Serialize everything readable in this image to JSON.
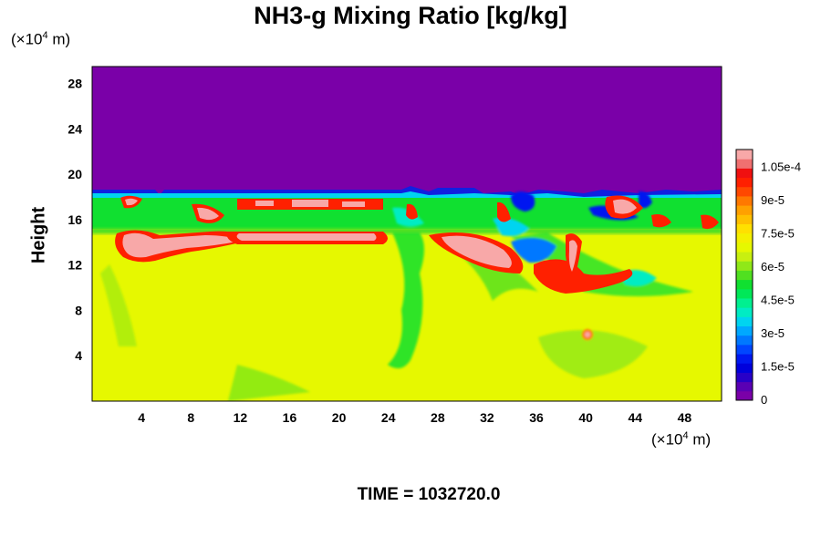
{
  "chart_data": {
    "type": "heatmap",
    "title": "NH3-g Mixing Ratio [kg/kg]",
    "ylabel": "Height",
    "y_unit_prefix": "(×10",
    "y_unit_exp": "4",
    "y_unit_suffix": " m)",
    "x_unit_prefix": "(×10",
    "x_unit_exp": "4",
    "x_unit_suffix": " m)",
    "time_label": "TIME = 1032720.0",
    "xlim": [
      0,
      51
    ],
    "ylim": [
      0,
      29.5
    ],
    "x_ticks": [
      4,
      8,
      12,
      16,
      20,
      24,
      28,
      32,
      36,
      40,
      44,
      48
    ],
    "y_ticks": [
      4,
      8,
      12,
      16,
      20,
      24,
      28
    ],
    "colorbar": {
      "range": [
        0,
        0.000113
      ],
      "tick_values": [
        0,
        1.5e-05,
        3e-05,
        4.5e-05,
        6e-05,
        7.5e-05,
        9e-05,
        0.000105
      ],
      "tick_labels": [
        "0",
        "1.5e-5",
        "3e-5",
        "4.5e-5",
        "6e-5",
        "7.5e-5",
        "9e-5",
        "1.05e-4"
      ],
      "colors": [
        "#7a00a8",
        "#5a00b4",
        "#2800c8",
        "#0000dc",
        "#0018f0",
        "#0046ff",
        "#0078ff",
        "#00a8ff",
        "#00d4f0",
        "#00ecc4",
        "#00f090",
        "#00e858",
        "#10e030",
        "#50e020",
        "#90e818",
        "#c8f010",
        "#e6f800",
        "#f4f000",
        "#ffe000",
        "#ffc000",
        "#ffa000",
        "#ff7800",
        "#ff4800",
        "#ff2000",
        "#f01010",
        "#f07070",
        "#f8a8a8"
      ]
    },
    "field_description_levels": {
      "upper_region_value": 0,
      "lower_region_value": 8e-05,
      "band_top_height": 18.5,
      "band_bottom_height": 13
    }
  }
}
